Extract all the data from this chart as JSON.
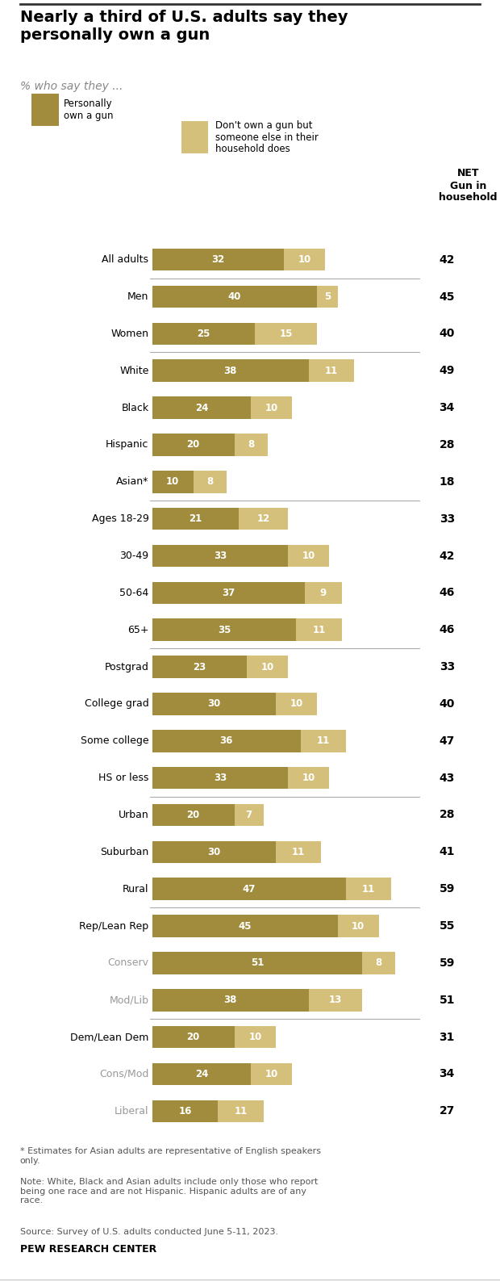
{
  "title": "Nearly a third of U.S. adults say they\npersonally own a gun",
  "subtitle": "% who say they ...",
  "categories": [
    "All adults",
    "Men",
    "Women",
    "White",
    "Black",
    "Hispanic",
    "Asian*",
    "Ages 18-29",
    "30-49",
    "50-64",
    "65+",
    "Postgrad",
    "College grad",
    "Some college",
    "HS or less",
    "Urban",
    "Suburban",
    "Rural",
    "Rep/Lean Rep",
    "Conserv",
    "Mod/Lib",
    "Dem/Lean Dem",
    "Cons/Mod",
    "Liberal"
  ],
  "personally_own": [
    32,
    40,
    25,
    38,
    24,
    20,
    10,
    21,
    33,
    37,
    35,
    23,
    30,
    36,
    33,
    20,
    30,
    47,
    45,
    51,
    38,
    20,
    24,
    16
  ],
  "household_only": [
    10,
    5,
    15,
    11,
    10,
    8,
    8,
    12,
    10,
    9,
    11,
    10,
    10,
    11,
    10,
    7,
    11,
    11,
    10,
    8,
    13,
    10,
    10,
    11
  ],
  "net": [
    42,
    45,
    40,
    49,
    34,
    28,
    18,
    33,
    42,
    46,
    46,
    33,
    40,
    47,
    43,
    28,
    41,
    59,
    55,
    59,
    51,
    31,
    34,
    27
  ],
  "color_dark": "#A08C3C",
  "color_light": "#D4C07A",
  "separator_after": [
    0,
    2,
    6,
    10,
    14,
    17,
    20
  ],
  "gray_label_indices": [
    19,
    20,
    22,
    23
  ],
  "footnote1": "* Estimates for Asian adults are representative of English speakers\nonly.",
  "footnote2": "Note: White, Black and Asian adults include only those who report\nbeing one race and are not Hispanic. Hispanic adults are of any\nrace.",
  "footnote3": "Source: Survey of U.S. adults conducted June 5-11, 2023.",
  "source": "PEW RESEARCH CENTER",
  "legend1_line1": "Personally",
  "legend1_line2": "own a gun",
  "legend2": "Don't own a gun but\nsomeone else in their\nhousehold does",
  "net_label": "NET\nGun in\nhousehold",
  "bg_color": "#FFFFFF"
}
